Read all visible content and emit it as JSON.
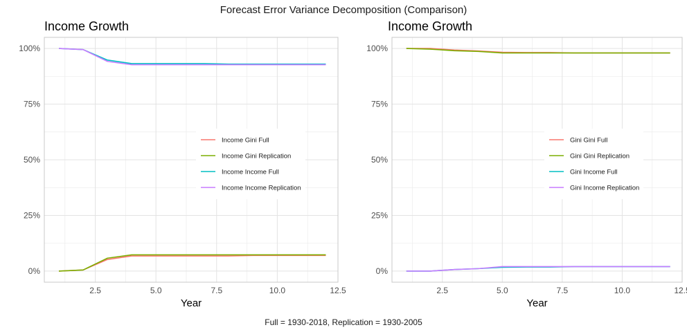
{
  "title": "Forecast Error Variance Decomposition (Comparison)",
  "caption": "Full = 1930-2018, Replication = 1930-2005",
  "colors": {
    "red": "#F8766D",
    "olive": "#7CAE00",
    "teal": "#00BFC4",
    "purple": "#C77CFF",
    "grid": "#e3e3e3",
    "panel_border": "#c8c8c8"
  },
  "chart_data": [
    {
      "type": "line",
      "title": "Income Growth",
      "xlabel": "Year",
      "ylabel": "",
      "xlim": [
        0.4,
        12.5
      ],
      "ylim": [
        -0.05,
        1.05
      ],
      "x_ticks": [
        2.5,
        5.0,
        7.5,
        10.0,
        12.5
      ],
      "x_tick_labels": [
        "2.5",
        "5.0",
        "7.5",
        "10.0",
        "12.5"
      ],
      "y_ticks": [
        0,
        0.25,
        0.5,
        0.75,
        1.0
      ],
      "y_tick_labels": [
        "0%",
        "25%",
        "50%",
        "75%",
        "100%"
      ],
      "grid": true,
      "legend_position": "center-right",
      "x": [
        1,
        2,
        3,
        4,
        5,
        6,
        7,
        8,
        9,
        10,
        11,
        12
      ],
      "series": [
        {
          "name": "Income Gini Full",
          "color": "#F8766D",
          "values": [
            0.0,
            0.005,
            0.052,
            0.068,
            0.068,
            0.068,
            0.068,
            0.068,
            0.07,
            0.07,
            0.07,
            0.07
          ]
        },
        {
          "name": "Income Gini Replication",
          "color": "#7CAE00",
          "values": [
            0.0,
            0.005,
            0.058,
            0.073,
            0.073,
            0.073,
            0.073,
            0.073,
            0.073,
            0.073,
            0.073,
            0.073
          ]
        },
        {
          "name": "Income Income Full",
          "color": "#00BFC4",
          "values": [
            1.0,
            0.995,
            0.948,
            0.932,
            0.932,
            0.932,
            0.932,
            0.93,
            0.93,
            0.93,
            0.93,
            0.93
          ]
        },
        {
          "name": "Income Income Replication",
          "color": "#C77CFF",
          "values": [
            1.0,
            0.995,
            0.942,
            0.927,
            0.927,
            0.927,
            0.927,
            0.927,
            0.927,
            0.927,
            0.927,
            0.927
          ]
        }
      ]
    },
    {
      "type": "line",
      "title": "Income Growth",
      "xlabel": "Year",
      "ylabel": "",
      "xlim": [
        0.4,
        12.5
      ],
      "ylim": [
        -0.05,
        1.05
      ],
      "x_ticks": [
        2.5,
        5.0,
        7.5,
        10.0,
        12.5
      ],
      "x_tick_labels": [
        "2.5",
        "5.0",
        "7.5",
        "10.0",
        "12.5"
      ],
      "y_ticks": [
        0,
        0.25,
        0.5,
        0.75,
        1.0
      ],
      "y_tick_labels": [
        "0%",
        "25%",
        "50%",
        "75%",
        "100%"
      ],
      "grid": true,
      "legend_position": "center-right",
      "x": [
        1,
        2,
        3,
        4,
        5,
        6,
        7,
        8,
        9,
        10,
        11,
        12
      ],
      "series": [
        {
          "name": "Gini Gini Full",
          "color": "#F8766D",
          "values": [
            1.0,
            1.0,
            0.993,
            0.989,
            0.983,
            0.982,
            0.982,
            0.98,
            0.98,
            0.98,
            0.98,
            0.98
          ]
        },
        {
          "name": "Gini Gini Replication",
          "color": "#7CAE00",
          "values": [
            1.0,
            0.997,
            0.99,
            0.987,
            0.98,
            0.98,
            0.98,
            0.98,
            0.98,
            0.98,
            0.98,
            0.98
          ]
        },
        {
          "name": "Gini Income Full",
          "color": "#00BFC4",
          "values": [
            0.0,
            0.0,
            0.007,
            0.011,
            0.017,
            0.018,
            0.018,
            0.02,
            0.02,
            0.02,
            0.02,
            0.02
          ]
        },
        {
          "name": "Gini Income Replication",
          "color": "#C77CFF",
          "values": [
            0.0,
            0.0,
            0.007,
            0.011,
            0.02,
            0.02,
            0.02,
            0.02,
            0.02,
            0.02,
            0.02,
            0.02
          ]
        }
      ]
    }
  ]
}
